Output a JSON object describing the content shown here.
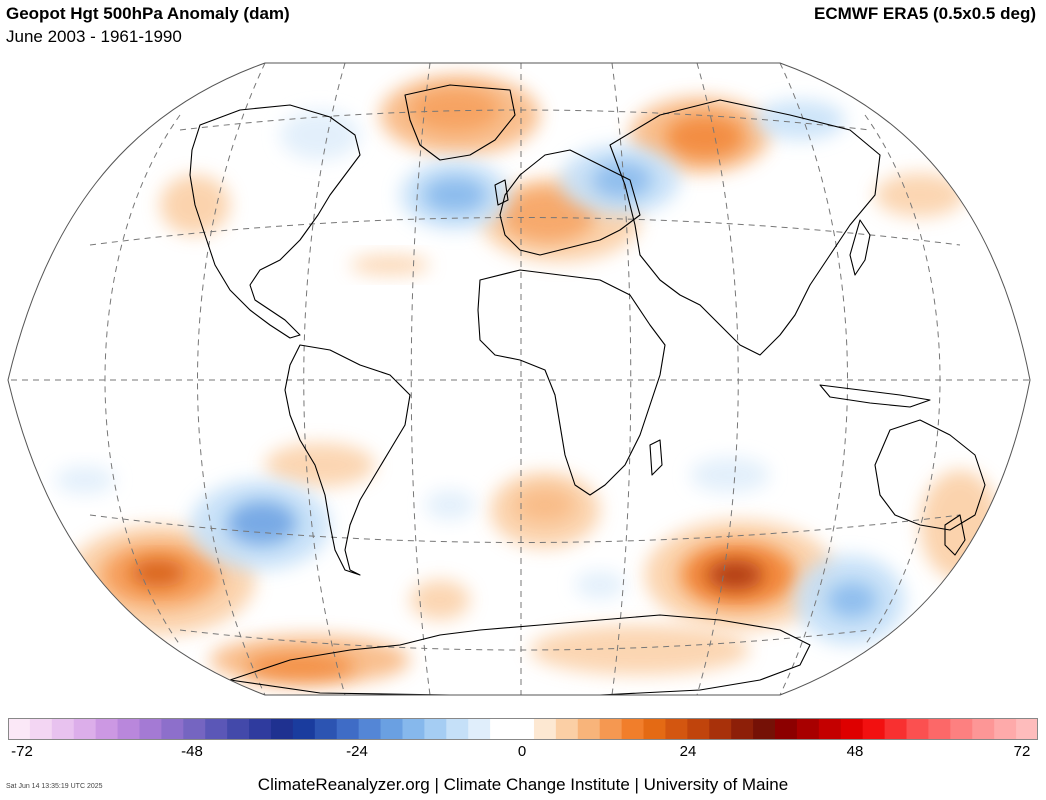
{
  "header": {
    "title": "Geopot Hgt 500hPa Anomaly (dam)",
    "subtitle": "June 2003 - 1961-1990",
    "source": "ECMWF ERA5 (0.5x0.5 deg)"
  },
  "colorbar": {
    "ticks": [
      "-72",
      "-48",
      "-24",
      "0",
      "24",
      "48",
      "72"
    ],
    "colors": [
      "#fbe8f7",
      "#f3d6f3",
      "#e8c2ef",
      "#dcaeea",
      "#cc98e3",
      "#b987dc",
      "#a47ad4",
      "#8d6fcb",
      "#7565c1",
      "#5b57b7",
      "#4349aa",
      "#2f3b9e",
      "#1f3190",
      "#1a3c9e",
      "#2c54b2",
      "#3f6cc6",
      "#5486d6",
      "#6aa0e2",
      "#86b8ec",
      "#a5cdf3",
      "#c5e0f8",
      "#e0eefb",
      "#ffffff",
      "#ffffff",
      "#fde8d2",
      "#fbcfa5",
      "#f8b47a",
      "#f59851",
      "#f17e2b",
      "#e46a14",
      "#d35610",
      "#c0440c",
      "#a8310a",
      "#8d1f08",
      "#751106",
      "#8c0000",
      "#a80000",
      "#c40000",
      "#de0000",
      "#f21010",
      "#f83030",
      "#fb5050",
      "#fc6868",
      "#fd8080",
      "#fd9696",
      "#feaaaa",
      "#febcbc"
    ]
  },
  "footer": {
    "timestamp": "Sat Jun 14 13:35:19 UTC 2025",
    "credit": "ClimateReanalyzer.org | Climate Change Institute | University of Maine"
  }
}
